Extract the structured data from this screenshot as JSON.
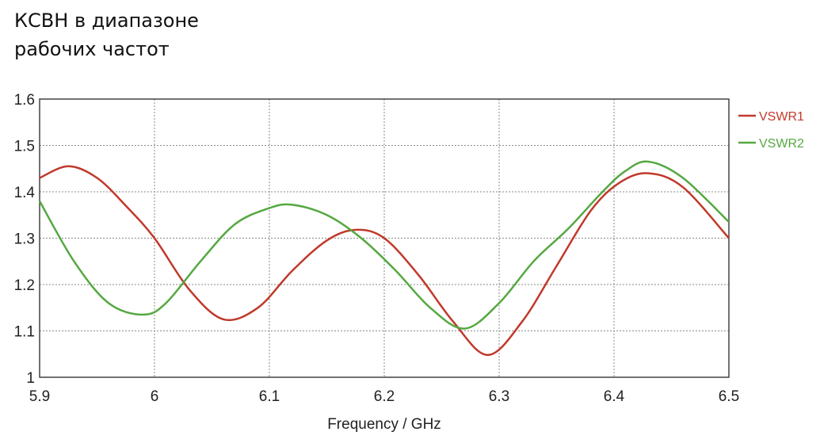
{
  "title_lines": [
    "КСВН в диапазоне",
    "рабочих частот"
  ],
  "chart_data": {
    "type": "line",
    "xlabel": "Frequency / GHz",
    "ylabel": "",
    "xlim": [
      5.9,
      6.5
    ],
    "ylim": [
      1.0,
      1.6
    ],
    "xticks": [
      "5.9",
      "6",
      "6.1",
      "6.2",
      "6.3",
      "6.4",
      "6.5"
    ],
    "yticks": [
      "1",
      "1.1",
      "1.2",
      "1.3",
      "1.4",
      "1.5",
      "1.6"
    ],
    "grid": true,
    "legend_position": "right",
    "series": [
      {
        "name": "VSWR1",
        "color": "#c0392b",
        "x": [
          5.9,
          5.925,
          5.95,
          5.975,
          6.0,
          6.03,
          6.06,
          6.09,
          6.12,
          6.15,
          6.175,
          6.2,
          6.23,
          6.26,
          6.29,
          6.32,
          6.35,
          6.38,
          6.405,
          6.43,
          6.46,
          6.5
        ],
        "y": [
          1.43,
          1.455,
          1.43,
          1.37,
          1.3,
          1.19,
          1.125,
          1.15,
          1.23,
          1.295,
          1.318,
          1.3,
          1.22,
          1.12,
          1.048,
          1.12,
          1.24,
          1.36,
          1.42,
          1.44,
          1.41,
          1.3
        ]
      },
      {
        "name": "VSWR2",
        "color": "#55a841",
        "x": [
          5.9,
          5.93,
          5.96,
          5.99,
          6.01,
          6.04,
          6.07,
          6.1,
          6.12,
          6.15,
          6.18,
          6.21,
          6.24,
          6.27,
          6.3,
          6.33,
          6.36,
          6.39,
          6.41,
          6.43,
          6.46,
          6.5
        ],
        "y": [
          1.38,
          1.25,
          1.16,
          1.135,
          1.16,
          1.25,
          1.33,
          1.365,
          1.372,
          1.35,
          1.3,
          1.23,
          1.15,
          1.105,
          1.16,
          1.25,
          1.32,
          1.4,
          1.445,
          1.465,
          1.43,
          1.335
        ]
      }
    ]
  }
}
